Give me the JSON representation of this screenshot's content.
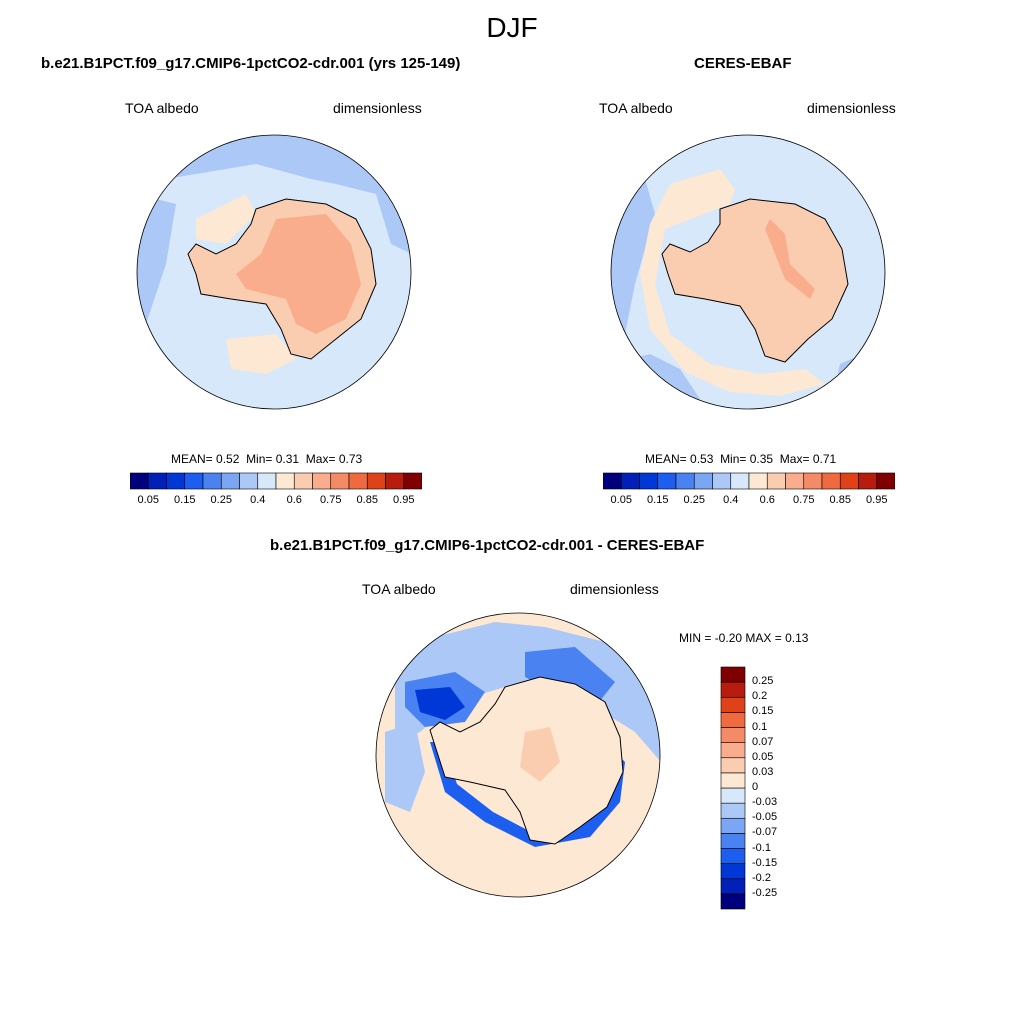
{
  "page": {
    "title": "DJF"
  },
  "panels": [
    {
      "title": "b.e21.B1PCT.f09_g17.CMIP6-1pctCO2-cdr.001 (yrs 125-149)",
      "left_label": "TOA albedo",
      "right_label": "dimensionless",
      "stats": {
        "mean_label": "MEAN=",
        "mean": "0.52",
        "min_label": "Min=",
        "min": "0.31",
        "max_label": "Max=",
        "max": "0.73"
      }
    },
    {
      "title": "CERES-EBAF",
      "left_label": "TOA albedo",
      "right_label": "dimensionless",
      "stats": {
        "mean_label": "MEAN=",
        "mean": "0.53",
        "min_label": "Min=",
        "min": "0.35",
        "max_label": "Max=",
        "max": "0.71"
      }
    }
  ],
  "diff_panel": {
    "title": "b.e21.B1PCT.f09_g17.CMIP6-1pctCO2-cdr.001 - CERES-EBAF",
    "left_label": "TOA albedo",
    "right_label": "dimensionless",
    "minmax": {
      "min_label": "MIN =",
      "min": "-0.20",
      "max_label": "MAX =",
      "max": "0.13"
    }
  },
  "colorbar_abs": {
    "colors": [
      "#00007f",
      "#0020b8",
      "#0038d8",
      "#1c5ef0",
      "#4a82f2",
      "#7aa6f4",
      "#acc8f6",
      "#d6e8fa",
      "#fde8d4",
      "#fbcdb0",
      "#f9ad8c",
      "#f58a66",
      "#f06a40",
      "#e04218",
      "#b81c0c",
      "#7f0000"
    ],
    "ticks": [
      "0.05",
      "0.15",
      "0.25",
      "0.4",
      "0.6",
      "0.75",
      "0.85",
      "0.95"
    ]
  },
  "colorbar_diff": {
    "colors": [
      "#00007f",
      "#0020b8",
      "#0038d8",
      "#1c5ef0",
      "#4a82f2",
      "#7aa6f4",
      "#acc8f6",
      "#d6e8fa",
      "#fde8d4",
      "#fbcdb0",
      "#f9ad8c",
      "#f58a66",
      "#f06a40",
      "#e04218",
      "#b81c0c",
      "#7f0000"
    ],
    "ticks": [
      "-0.25",
      "-0.2",
      "-0.15",
      "-0.1",
      "-0.07",
      "-0.05",
      "-0.03",
      "0",
      "0.03",
      "0.05",
      "0.07",
      "0.1",
      "0.15",
      "0.2",
      "0.25"
    ]
  },
  "map_colors": {
    "ocean_low": "#d6e8fa",
    "ocean_mid": "#acc8f6",
    "ocean_deep": "#7aa6f4",
    "land_light": "#fde8d4",
    "land_mid": "#fbcdb0",
    "land_high": "#f9ad8c",
    "diff_pos": "#fde8d4",
    "diff_neg1": "#acc8f6",
    "diff_neg2": "#4a82f2",
    "diff_neg3": "#1c5ef0",
    "diff_neg4": "#0038d8"
  }
}
